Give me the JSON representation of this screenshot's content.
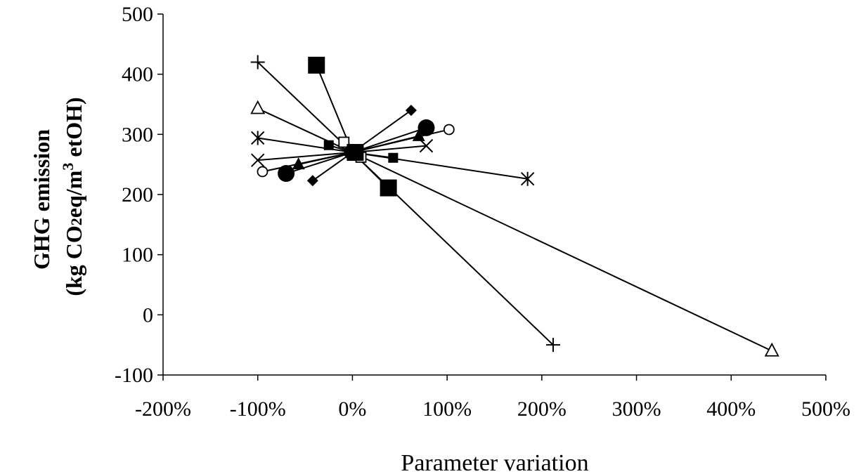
{
  "chart_data": {
    "type": "scatter",
    "title": "",
    "xlabel": "Parameter variation",
    "ylabel": {
      "line1": "GHG emission",
      "line2_prefix": "(kg CO",
      "line2_sub": "2",
      "line2_mid": "eq/m",
      "line2_sup": "3",
      "line2_suffix": " etOH)"
    },
    "xlim": [
      -2,
      5
    ],
    "ylim": [
      -100,
      500
    ],
    "x_ticks": [
      -2,
      -1,
      0,
      1,
      2,
      3,
      4,
      5
    ],
    "x_tick_labels": [
      "-200%",
      "-100%",
      "0%",
      "100%",
      "200%",
      "300%",
      "400%",
      "500%"
    ],
    "y_ticks": [
      -100,
      0,
      100,
      200,
      300,
      400,
      500
    ],
    "y_tick_labels": [
      "-100",
      "0",
      "100",
      "200",
      "300",
      "400",
      "500"
    ],
    "grid": false,
    "legend": "none",
    "center_point": [
      0,
      270
    ],
    "series": [
      {
        "marker": "plus",
        "points": [
          [
            -1.0,
            420
          ],
          [
            0,
            270
          ],
          [
            2.12,
            -50
          ]
        ]
      },
      {
        "marker": "triangle-open",
        "points": [
          [
            -1.0,
            343
          ],
          [
            0,
            270
          ],
          [
            4.43,
            -60
          ]
        ]
      },
      {
        "marker": "square-big",
        "points": [
          [
            -0.38,
            415
          ],
          [
            0,
            270
          ],
          [
            0.38,
            211
          ]
        ]
      },
      {
        "marker": "square-open",
        "points": [
          [
            -0.09,
            287
          ],
          [
            0,
            270
          ],
          [
            0.09,
            262
          ]
        ]
      },
      {
        "marker": "square-small",
        "points": [
          [
            -0.25,
            282
          ],
          [
            0,
            270
          ],
          [
            0.43,
            261
          ]
        ]
      },
      {
        "marker": "asterisk",
        "points": [
          [
            -1.0,
            294
          ],
          [
            0,
            270
          ],
          [
            1.85,
            226
          ]
        ]
      },
      {
        "marker": "x",
        "points": [
          [
            -1.0,
            257
          ],
          [
            0,
            270
          ],
          [
            0.78,
            281
          ]
        ]
      },
      {
        "marker": "circle-open",
        "points": [
          [
            -0.95,
            238
          ],
          [
            0,
            270
          ],
          [
            1.02,
            308
          ]
        ]
      },
      {
        "marker": "circle-big",
        "points": [
          [
            -0.7,
            235
          ],
          [
            0,
            270
          ],
          [
            0.78,
            311
          ]
        ]
      },
      {
        "marker": "triangle-filled",
        "points": [
          [
            -0.57,
            250
          ],
          [
            0,
            270
          ],
          [
            0.7,
            297
          ]
        ]
      },
      {
        "marker": "diamond",
        "points": [
          [
            -0.42,
            223
          ],
          [
            0,
            270
          ],
          [
            0.62,
            340
          ]
        ]
      }
    ]
  }
}
